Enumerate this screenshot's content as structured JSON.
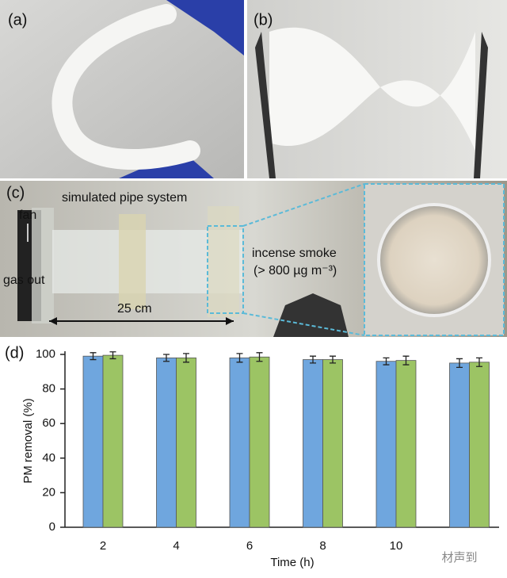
{
  "panels": {
    "a": {
      "label": "(a)"
    },
    "b": {
      "label": "(b)"
    },
    "c": {
      "label": "(c)",
      "annotations": [
        "simulated pipe system",
        "fan",
        "gas out",
        "incense smoke",
        "(> 800 µg m⁻³)",
        "25 cm"
      ]
    },
    "d": {
      "label": "(d)"
    }
  },
  "watermark": "材声到",
  "chart_data": {
    "type": "bar",
    "xlabel": "Time (h)",
    "ylabel": "PM removal (%)",
    "categories": [
      "2",
      "4",
      "6",
      "8",
      "10",
      null
    ],
    "series": [
      {
        "color": "#6fa6de",
        "values": [
          99,
          98,
          98,
          97,
          96,
          95
        ],
        "errors": [
          2,
          2,
          2.5,
          2,
          2,
          2.5
        ]
      },
      {
        "color": "#9cc464",
        "values": [
          99.5,
          98,
          98.5,
          97,
          96.5,
          95.5
        ],
        "errors": [
          2,
          2.5,
          2.5,
          2,
          2.5,
          2.5
        ]
      }
    ],
    "ylim": [
      0,
      100
    ],
    "yticks": [
      0,
      20,
      40,
      60,
      80,
      100
    ],
    "grid": false
  }
}
